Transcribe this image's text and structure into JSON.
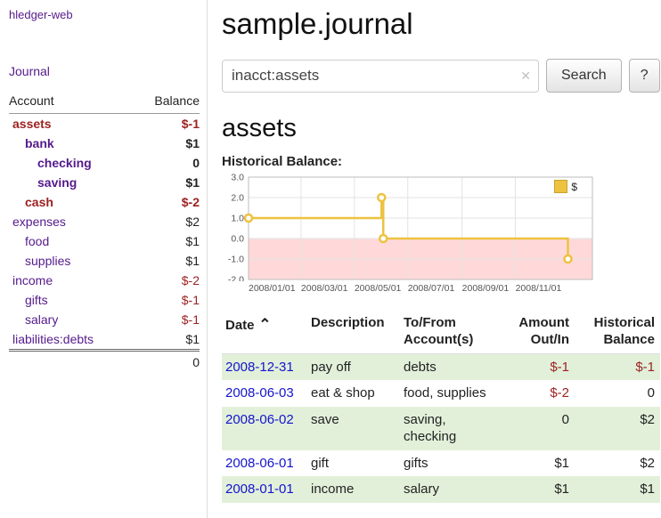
{
  "app": {
    "brand": "hledger-web",
    "nav_journal": "Journal"
  },
  "colors": {
    "link_visited": "#551a8b",
    "link": "#1414cc",
    "negative": "#9d2121",
    "row_shade": "#e2f0da",
    "series": "#edc240",
    "negative_region": "#ffd9d9"
  },
  "sidebar": {
    "header": {
      "account": "Account",
      "balance": "Balance"
    },
    "accounts": [
      {
        "name": "assets",
        "balance": "$-1",
        "indent": 0,
        "bold": true,
        "name_negative": true,
        "balance_negative": true
      },
      {
        "name": "bank",
        "balance": "$1",
        "indent": 1,
        "bold": true
      },
      {
        "name": "checking",
        "balance": "0",
        "indent": 2,
        "bold": true
      },
      {
        "name": "saving",
        "balance": "$1",
        "indent": 2,
        "bold": true
      },
      {
        "name": "cash",
        "balance": "$-2",
        "indent": 1,
        "bold": true,
        "name_negative": true,
        "balance_negative": true
      },
      {
        "name": "expenses",
        "balance": "$2",
        "indent": 0
      },
      {
        "name": "food",
        "balance": "$1",
        "indent": 1
      },
      {
        "name": "supplies",
        "balance": "$1",
        "indent": 1
      },
      {
        "name": "income",
        "balance": "$-2",
        "indent": 0,
        "balance_negative": true
      },
      {
        "name": "gifts",
        "balance": "$-1",
        "indent": 1,
        "balance_negative": true
      },
      {
        "name": "salary",
        "balance": "$-1",
        "indent": 1,
        "balance_negative": true
      },
      {
        "name": "liabilities:debts",
        "balance": "$1",
        "indent": 0
      }
    ],
    "total": "0"
  },
  "header": {
    "title": "sample.journal"
  },
  "search": {
    "value": "inacct:assets",
    "clear_icon": "✕",
    "button_label": "Search",
    "help_label": "?"
  },
  "account_page": {
    "heading": "assets",
    "chart_title": "Historical Balance:"
  },
  "chart_data": {
    "type": "line",
    "step": true,
    "title": "Historical Balance",
    "series": [
      {
        "name": "$",
        "color": "#edc240",
        "points": [
          {
            "date": "2008-01-01",
            "value": 1
          },
          {
            "date": "2008-06-01",
            "value": 2
          },
          {
            "date": "2008-06-03",
            "value": 0
          },
          {
            "date": "2008-12-31",
            "value": -1
          }
        ]
      }
    ],
    "x_ticks": [
      "2008/01/01",
      "2008/03/01",
      "2008/05/01",
      "2008/07/01",
      "2008/09/01",
      "2008/11/01"
    ],
    "y_ticks": [
      "3.0",
      "2.0",
      "1.0",
      "0.0",
      "-1.0",
      "-2.0"
    ],
    "ylim": [
      -2,
      3
    ],
    "x_span_days": 393,
    "grid": true,
    "negative_region_fill": "#ffd9d9",
    "legend": {
      "label": "$",
      "position": "top-right"
    }
  },
  "register": {
    "columns": [
      {
        "line1": "Date",
        "sort": "⌃"
      },
      {
        "line1": "Description"
      },
      {
        "line1": "To/From",
        "line2": "Account(s)"
      },
      {
        "line1": "Amount",
        "line2": "Out/In",
        "align": "right"
      },
      {
        "line1": "Historical",
        "line2": "Balance",
        "align": "right"
      }
    ],
    "rows": [
      {
        "date": "2008-12-31",
        "description": "pay off",
        "accounts": "debts",
        "amount": "$-1",
        "balance": "$-1",
        "amount_negative": true,
        "balance_negative": true,
        "shaded": true
      },
      {
        "date": "2008-06-03",
        "description": "eat & shop",
        "accounts": "food, supplies",
        "amount": "$-2",
        "balance": "0",
        "amount_negative": true,
        "shaded": false
      },
      {
        "date": "2008-06-02",
        "description": "save",
        "accounts": "saving, checking",
        "amount": "0",
        "balance": "$2",
        "shaded": true
      },
      {
        "date": "2008-06-01",
        "description": "gift",
        "accounts": "gifts",
        "amount": "$1",
        "balance": "$2",
        "shaded": false
      },
      {
        "date": "2008-01-01",
        "description": "income",
        "accounts": "salary",
        "amount": "$1",
        "balance": "$1",
        "shaded": true
      }
    ]
  }
}
